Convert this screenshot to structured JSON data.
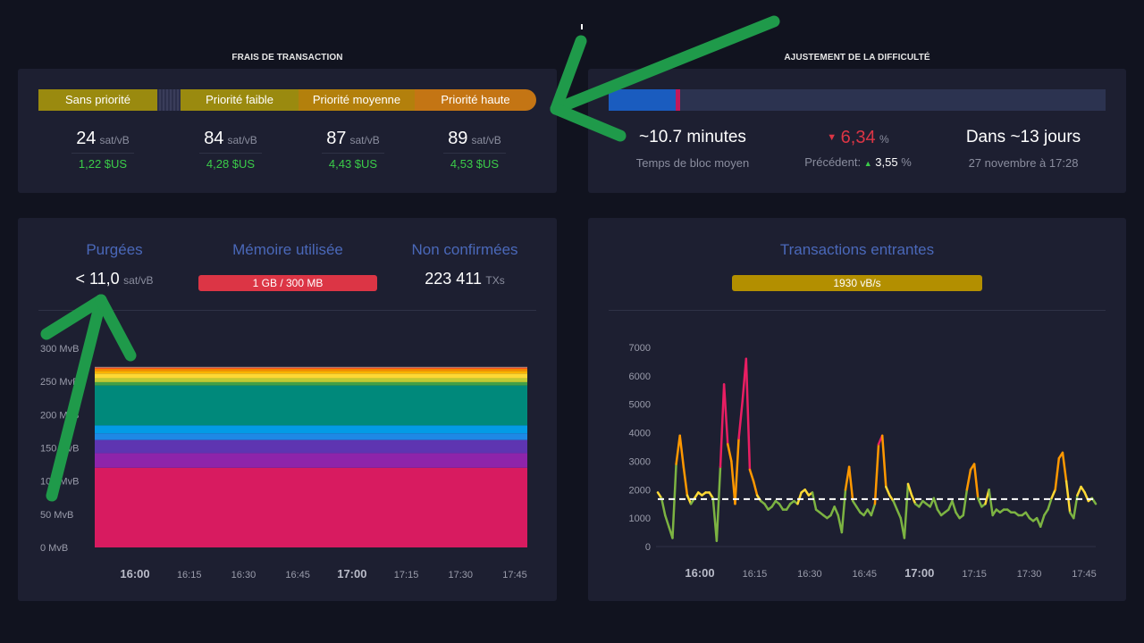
{
  "fees": {
    "title": "FRAIS DE TRANSACTION",
    "tiers": [
      {
        "label": "Sans priorité",
        "rate": "24",
        "unit": "sat/vB",
        "fiat": "1,22 $US"
      },
      {
        "label": "Priorité faible",
        "rate": "84",
        "unit": "sat/vB",
        "fiat": "4,28 $US"
      },
      {
        "label": "Priorité moyenne",
        "rate": "87",
        "unit": "sat/vB",
        "fiat": "4,43 $US"
      },
      {
        "label": "Priorité haute",
        "rate": "89",
        "unit": "sat/vB",
        "fiat": "4,53 $US"
      }
    ]
  },
  "difficulty": {
    "title": "AJUSTEMENT DE LA DIFFICULTÉ",
    "block_time": "~10.7 minutes",
    "block_time_label": "Temps de bloc moyen",
    "change": "6,34",
    "change_unit": "%",
    "previous_label": "Précédent:",
    "previous_value": "3,55",
    "previous_unit": "%",
    "eta": "Dans ~13 jours",
    "eta_date": "27 novembre à 17:28",
    "progress_fraction": 0.135
  },
  "mempool": {
    "purged_label": "Purgées",
    "purged_value": "< 11,0",
    "purged_unit": "sat/vB",
    "memory_label": "Mémoire utilisée",
    "memory_value": "1 GB / 300 MB",
    "unconfirmed_label": "Non confirmées",
    "unconfirmed_value": "223 411",
    "unconfirmed_unit": "TXs"
  },
  "incoming": {
    "title": "Transactions entrantes",
    "rate": "1930 vB/s"
  },
  "colors": {
    "low_tier": "#9a8a0f",
    "mid_tier": "#b3800c",
    "high_tier": "#c47514",
    "memory_badge": "#dc3545",
    "rate_badge": "#b38f00",
    "accent_blue": "#4a68b9",
    "positive": "#3bcc49",
    "negative": "#dc3545"
  },
  "chart_data": [
    {
      "type": "area",
      "title": "",
      "ylabels": [
        "0 MvB",
        "50 MvB",
        "100 MvB",
        "150 MvB",
        "200 MvB",
        "250 MvB",
        "300 MvB"
      ],
      "ylim": [
        0,
        300
      ],
      "xlabels": [
        "16:00",
        "16:15",
        "16:30",
        "16:45",
        "17:00",
        "17:15",
        "17:30",
        "17:45"
      ],
      "series": [
        {
          "color": "#d81b60",
          "values": [
            120
          ]
        },
        {
          "color": "#8e24aa",
          "values": [
            22
          ]
        },
        {
          "color": "#5e35b1",
          "values": [
            20
          ]
        },
        {
          "color": "#1e88e5",
          "values": [
            10
          ]
        },
        {
          "color": "#039be5",
          "values": [
            12
          ]
        },
        {
          "color": "#00897b",
          "values": [
            60
          ]
        },
        {
          "color": "#43a047",
          "values": [
            5
          ]
        },
        {
          "color": "#c0ca33",
          "values": [
            6
          ]
        },
        {
          "color": "#fdd835",
          "values": [
            7
          ]
        },
        {
          "color": "#ffb300",
          "values": [
            4
          ]
        },
        {
          "color": "#fb8c00",
          "values": [
            3
          ]
        },
        {
          "color": "#f4511e",
          "values": [
            2
          ]
        },
        {
          "color": "#9e9e9e",
          "values": [
            1
          ]
        }
      ]
    },
    {
      "type": "line",
      "title": "",
      "ylabels": [
        "0",
        "1000",
        "2000",
        "3000",
        "4000",
        "5000",
        "6000",
        "7000"
      ],
      "ylim": [
        0,
        7000
      ],
      "xlabels": [
        "16:00",
        "16:15",
        "16:30",
        "16:45",
        "17:00",
        "17:15",
        "17:30",
        "17:45"
      ],
      "threshold": 1667,
      "x": [
        0,
        1,
        2,
        3,
        4,
        5,
        6,
        7,
        8,
        9,
        10,
        11,
        12,
        13,
        14,
        15,
        16,
        17,
        18,
        19,
        20,
        21,
        22,
        23,
        24,
        25,
        26,
        27,
        28,
        29,
        30,
        31,
        32,
        33,
        34,
        35,
        36,
        37,
        38,
        39,
        40,
        41,
        42,
        43,
        44,
        45,
        46,
        47,
        48,
        49,
        50,
        51,
        52,
        53,
        54,
        55,
        56,
        57,
        58,
        59,
        60,
        61,
        62,
        63,
        64,
        65,
        66,
        67,
        68,
        69,
        70,
        71,
        72,
        73,
        74,
        75,
        76,
        77,
        78,
        79,
        80,
        81,
        82,
        83,
        84,
        85,
        86,
        87,
        88,
        89,
        90,
        91,
        92,
        93,
        94,
        95,
        96,
        97,
        98,
        99,
        100,
        101,
        102,
        103,
        104,
        105,
        106,
        107,
        108,
        109,
        110,
        111,
        112,
        113,
        114,
        115,
        116,
        117,
        118,
        119
      ],
      "values": [
        1900,
        1700,
        1100,
        700,
        300,
        2900,
        3900,
        2800,
        1800,
        1500,
        1700,
        1900,
        1800,
        1900,
        1900,
        1700,
        200,
        2800,
        5700,
        3600,
        3000,
        1500,
        3800,
        5100,
        6600,
        2700,
        2300,
        1800,
        1600,
        1500,
        1300,
        1400,
        1600,
        1500,
        1300,
        1300,
        1500,
        1600,
        1500,
        1900,
        2000,
        1800,
        1900,
        1300,
        1200,
        1100,
        1000,
        1100,
        1400,
        1100,
        500,
        2000,
        2800,
        1600,
        1400,
        1200,
        1100,
        1300,
        1100,
        1500,
        3600,
        3900,
        2100,
        1800,
        1600,
        1300,
        1000,
        300,
        2200,
        1800,
        1500,
        1400,
        1600,
        1500,
        1400,
        1700,
        1300,
        1100,
        1200,
        1300,
        1600,
        1200,
        1000,
        1100,
        2000,
        2700,
        2900,
        1700,
        1400,
        1500,
        2000,
        1100,
        1300,
        1200,
        1300,
        1300,
        1200,
        1200,
        1100,
        1100,
        1200,
        1000,
        900,
        1000,
        700,
        1100,
        1300,
        1700,
        2000,
        3100,
        3300,
        2300,
        1200,
        1000,
        1800,
        2100,
        1900,
        1600,
        1700,
        1500
      ]
    }
  ]
}
